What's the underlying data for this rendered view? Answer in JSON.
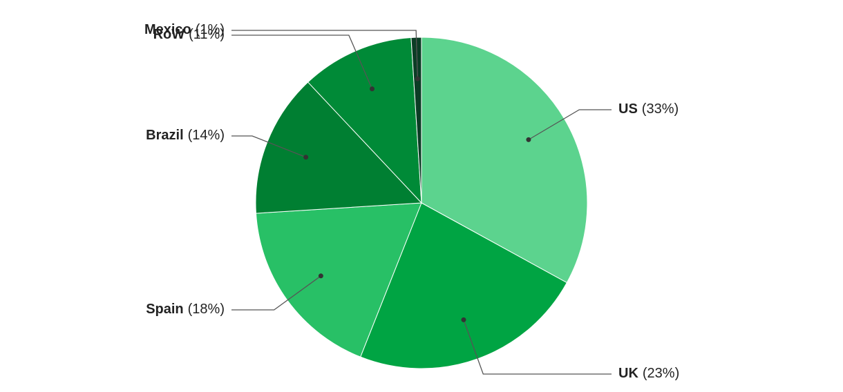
{
  "chart_data": {
    "type": "pie",
    "categories": [
      "US",
      "UK",
      "Spain",
      "Brazil",
      "RoW",
      "Mexico"
    ],
    "values": [
      33,
      23,
      18,
      14,
      11,
      1
    ],
    "value_labels": [
      "(33%)",
      "(23%)",
      "(18%)",
      "(14%)",
      "(11%)",
      "(1%)"
    ],
    "colors": [
      "#5cd38e",
      "#00a443",
      "#28c066",
      "#007f32",
      "#008a37",
      "#0b3d25"
    ]
  }
}
